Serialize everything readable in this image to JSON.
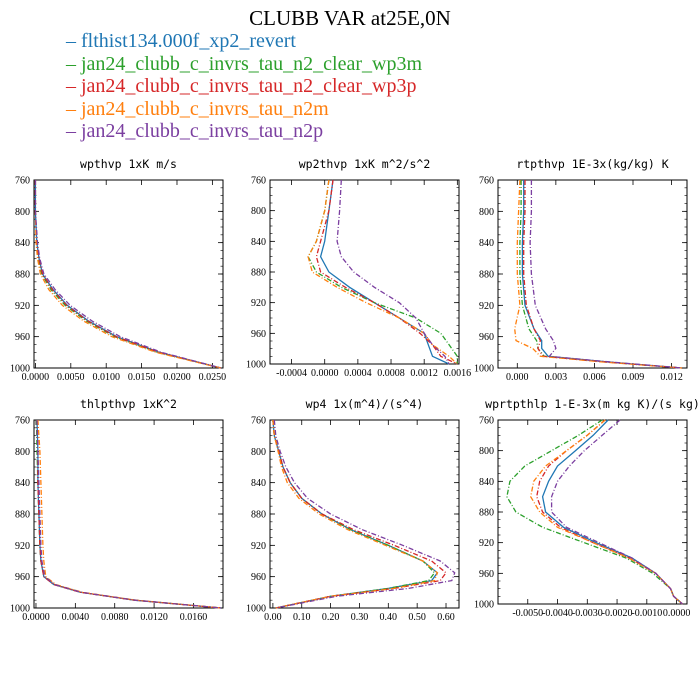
{
  "title": "CLUBB VAR at25E,0N",
  "legend": [
    {
      "label": "flthist134.000f_xp2_revert",
      "color": "#1f77b4"
    },
    {
      "label": "jan24_clubb_c_invrs_tau_n2_clear_wp3m",
      "color": "#2ca02c"
    },
    {
      "label": "jan24_clubb_c_invrs_tau_n2_clear_wp3p",
      "color": "#d62728"
    },
    {
      "label": "jan24_clubb_c_invrs_tau_n2m",
      "color": "#ff7f0e"
    },
    {
      "label": "jan24_clubb_c_invrs_tau_n2p",
      "color": "#7b3fa0"
    }
  ],
  "chart_data": [
    {
      "type": "line",
      "title": "wpthvp  1xK m/s",
      "xlim": [
        -0.0002,
        0.0265
      ],
      "xticks": [
        "0.0000",
        "0.0050",
        "0.0100",
        "0.0150",
        "0.0200",
        "0.0250"
      ],
      "xtick_values": [
        0,
        0.005,
        0.01,
        0.015,
        0.02,
        0.025
      ],
      "ylim": [
        760,
        1000
      ],
      "yticks": [
        "760",
        "800",
        "840",
        "880",
        "920",
        "960",
        "1000"
      ],
      "y": [
        760,
        800,
        840,
        860,
        880,
        900,
        920,
        940,
        960,
        980,
        1000
      ],
      "series": [
        {
          "values": [
            0,
            0,
            0.0002,
            0.0005,
            0.001,
            0.0025,
            0.0045,
            0.0075,
            0.0115,
            0.0175,
            0.0262
          ]
        },
        {
          "values": [
            0,
            0,
            0.0002,
            0.0004,
            0.0009,
            0.0022,
            0.0042,
            0.0072,
            0.0112,
            0.0172,
            0.0262
          ]
        },
        {
          "values": [
            0,
            0,
            0.0002,
            0.0005,
            0.001,
            0.0024,
            0.0044,
            0.0074,
            0.0114,
            0.0174,
            0.0262
          ]
        },
        {
          "values": [
            0,
            0,
            0.0001,
            0.0003,
            0.0007,
            0.0019,
            0.0038,
            0.0068,
            0.0108,
            0.017,
            0.0262
          ]
        },
        {
          "values": [
            0,
            0,
            0.0003,
            0.0006,
            0.0012,
            0.0028,
            0.0049,
            0.008,
            0.012,
            0.0178,
            0.0262
          ]
        }
      ]
    },
    {
      "type": "line",
      "title": "wp2thvp  1xK m^2/s^2",
      "xlim": [
        -0.00066,
        0.00162
      ],
      "xticks": [
        "-0.0004",
        "0.0000",
        "0.0004",
        "0.0008",
        "0.0012",
        "0.0016"
      ],
      "xtick_values": [
        -0.0004,
        0,
        0.0004,
        0.0008,
        0.0012,
        0.0016
      ],
      "ylim": [
        760,
        1000
      ],
      "yticks": [
        "760",
        "800",
        "840",
        "880",
        "920",
        "960",
        "1000"
      ],
      "y": [
        760,
        800,
        840,
        860,
        880,
        900,
        920,
        940,
        960,
        975,
        990,
        1000
      ],
      "series": [
        {
          "values": [
            0.0001,
            5e-05,
            0,
            -5e-05,
            5e-05,
            0.0003,
            0.0006,
            0.0009,
            0.0012,
            0.00125,
            0.0013,
            0.0015
          ]
        },
        {
          "values": [
            5e-05,
            0,
            -0.0001,
            -0.0002,
            -0.0001,
            0.0002,
            0.0006,
            0.0011,
            0.0014,
            0.0015,
            0.0016,
            0.0016
          ]
        },
        {
          "values": [
            0.0001,
            5e-05,
            -5e-05,
            -0.0001,
            -5e-05,
            0.00025,
            0.0006,
            0.0009,
            0.00115,
            0.0013,
            0.0014,
            0.0016
          ]
        },
        {
          "values": [
            5e-05,
            0,
            -0.0001,
            -0.0002,
            -0.00015,
            0.00015,
            0.0005,
            0.0009,
            0.0012,
            0.0013,
            0.0015,
            0.0016
          ]
        },
        {
          "values": [
            0.0002,
            0.00018,
            0.00015,
            0.0002,
            0.00035,
            0.0006,
            0.0009,
            0.0011,
            0.0012,
            0.0013,
            0.00145,
            0.0015
          ]
        }
      ]
    },
    {
      "type": "line",
      "title": "rtpthvp  1E-3x(kg/kg) K",
      "xlim": [
        -0.0015,
        0.0132
      ],
      "xticks": [
        "0.000",
        "0.003",
        "0.006",
        "0.009",
        "0.012"
      ],
      "xtick_values": [
        0,
        0.003,
        0.006,
        0.009,
        0.012
      ],
      "ylim": [
        760,
        1000
      ],
      "yticks": [
        "760",
        "800",
        "840",
        "880",
        "920",
        "960",
        "1000"
      ],
      "y": [
        760,
        800,
        840,
        880,
        920,
        950,
        965,
        975,
        985,
        992,
        1000
      ],
      "series": [
        {
          "values": [
            0.0005,
            0.0005,
            0.0004,
            0.0004,
            0.0006,
            0.0013,
            0.0019,
            0.0019,
            0.0024,
            0.0068,
            0.0128
          ]
        },
        {
          "values": [
            0.0003,
            0.0003,
            0.0002,
            0.0002,
            0.0004,
            0.0009,
            0.0015,
            0.0016,
            0.0021,
            0.0066,
            0.0128
          ]
        },
        {
          "values": [
            0.0006,
            0.0006,
            0.0005,
            0.0005,
            0.0007,
            0.0013,
            0.0018,
            0.0016,
            0.002,
            0.0066,
            0.0128
          ]
        },
        {
          "values": [
            0.0002,
            0.0001,
            0,
            0,
            0.0002,
            -0.0002,
            -0.0001,
            0.0012,
            0.0018,
            0.0064,
            0.0128
          ]
        },
        {
          "values": [
            0.0011,
            0.0011,
            0.001,
            0.0011,
            0.0014,
            0.0022,
            0.0028,
            0.003,
            0.0025,
            0.007,
            0.0128
          ]
        }
      ]
    },
    {
      "type": "line",
      "title": "thlpthvp  1xK^2",
      "xlim": [
        -0.0002,
        0.019
      ],
      "xticks": [
        "0.0000",
        "0.0040",
        "0.0080",
        "0.0120",
        "0.0160"
      ],
      "xtick_values": [
        0,
        0.004,
        0.008,
        0.012,
        0.016
      ],
      "ylim": [
        760,
        1000
      ],
      "yticks": [
        "760",
        "800",
        "840",
        "880",
        "920",
        "960",
        "1000"
      ],
      "y": [
        760,
        800,
        840,
        880,
        920,
        940,
        960,
        970,
        980,
        990,
        1000
      ],
      "series": [
        {
          "values": [
            0.0001,
            0.0002,
            0.0002,
            0.0003,
            0.0004,
            0.0005,
            0.0008,
            0.0018,
            0.0045,
            0.01,
            0.0188
          ]
        },
        {
          "values": [
            5e-05,
            0.0001,
            0.0002,
            0.0003,
            0.0004,
            0.0005,
            0.0009,
            0.0019,
            0.0046,
            0.0101,
            0.0188
          ]
        },
        {
          "values": [
            0.0001,
            0.0002,
            0.0002,
            0.0003,
            0.0004,
            0.0005,
            0.0008,
            0.0018,
            0.0045,
            0.01,
            0.0188
          ]
        },
        {
          "values": [
            0.0002,
            0.0004,
            0.0005,
            0.0006,
            0.0007,
            0.0008,
            0.001,
            0.002,
            0.0047,
            0.0102,
            0.0188
          ]
        },
        {
          "values": [
            0.0001,
            0.0002,
            0.0003,
            0.0004,
            0.0005,
            0.0006,
            0.0009,
            0.0019,
            0.0046,
            0.0101,
            0.0188
          ]
        }
      ]
    },
    {
      "type": "line",
      "title": "wp4  1x(m^4)/(s^4)",
      "xlim": [
        -0.01,
        0.645
      ],
      "xticks": [
        "0.00",
        "0.10",
        "0.20",
        "0.30",
        "0.40",
        "0.50",
        "0.60"
      ],
      "xtick_values": [
        0,
        0.1,
        0.2,
        0.3,
        0.4,
        0.5,
        0.6
      ],
      "ylim": [
        760,
        1000
      ],
      "yticks": [
        "760",
        "800",
        "840",
        "880",
        "920",
        "960",
        "1000"
      ],
      "y": [
        760,
        780,
        800,
        820,
        840,
        860,
        880,
        900,
        920,
        940,
        955,
        965,
        975,
        985,
        1000
      ],
      "series": [
        {
          "values": [
            0,
            0.005,
            0.02,
            0.035,
            0.06,
            0.1,
            0.17,
            0.27,
            0.4,
            0.52,
            0.57,
            0.55,
            0.4,
            0.2,
            0.01
          ]
        },
        {
          "values": [
            0,
            0.005,
            0.02,
            0.035,
            0.06,
            0.1,
            0.17,
            0.27,
            0.4,
            0.52,
            0.56,
            0.54,
            0.4,
            0.2,
            0.01
          ]
        },
        {
          "values": [
            0,
            0.005,
            0.02,
            0.035,
            0.06,
            0.1,
            0.17,
            0.28,
            0.42,
            0.55,
            0.6,
            0.58,
            0.42,
            0.2,
            0.01
          ]
        },
        {
          "values": [
            0,
            0.005,
            0.018,
            0.03,
            0.05,
            0.09,
            0.16,
            0.26,
            0.39,
            0.52,
            0.57,
            0.56,
            0.42,
            0.2,
            0.01
          ]
        },
        {
          "values": [
            0.005,
            0.01,
            0.025,
            0.045,
            0.075,
            0.12,
            0.2,
            0.31,
            0.45,
            0.58,
            0.63,
            0.62,
            0.47,
            0.22,
            0.01
          ]
        }
      ]
    },
    {
      "type": "line",
      "title": "wprtpthlp  1-E-3x(m kg K)/(s kg)",
      "xlim": [
        -0.006,
        0.00035
      ],
      "xticks": [
        "-0.0050",
        "-0.0040",
        "-0.0030",
        "-0.0020",
        "-0.0010",
        "0.0000"
      ],
      "xtick_values": [
        -0.005,
        -0.004,
        -0.003,
        -0.002,
        -0.001,
        0
      ],
      "ylim": [
        760,
        1000
      ],
      "yticks": [
        "760",
        "800",
        "840",
        "880",
        "920",
        "960",
        "1000"
      ],
      "y": [
        760,
        780,
        800,
        820,
        840,
        860,
        880,
        900,
        920,
        940,
        960,
        980,
        990,
        1000
      ],
      "series": [
        {
          "values": [
            -0.0023,
            -0.0028,
            -0.0034,
            -0.004,
            -0.0043,
            -0.0045,
            -0.0044,
            -0.0038,
            -0.0027,
            -0.0015,
            -0.0007,
            -0.0002,
            -0.0001,
            0.0002
          ]
        },
        {
          "values": [
            -0.0025,
            -0.0033,
            -0.0042,
            -0.0051,
            -0.0056,
            -0.0057,
            -0.0054,
            -0.0045,
            -0.0031,
            -0.0017,
            -0.0008,
            -0.0002,
            -0.0001,
            0.0002
          ]
        },
        {
          "values": [
            -0.0024,
            -0.003,
            -0.0037,
            -0.0043,
            -0.0046,
            -0.0047,
            -0.0045,
            -0.0039,
            -0.0028,
            -0.0016,
            -0.0007,
            -0.0002,
            -0.0001,
            0.0002
          ]
        },
        {
          "values": [
            -0.0024,
            -0.003,
            -0.0037,
            -0.0044,
            -0.0048,
            -0.0049,
            -0.0046,
            -0.004,
            -0.0028,
            -0.0016,
            -0.0007,
            -0.0002,
            -0.0001,
            0.0002
          ]
        },
        {
          "values": [
            -0.0019,
            -0.0025,
            -0.0031,
            -0.0036,
            -0.004,
            -0.0042,
            -0.0042,
            -0.0037,
            -0.0026,
            -0.0015,
            -0.0007,
            -0.0002,
            -0.0001,
            0.0002
          ]
        }
      ]
    }
  ]
}
